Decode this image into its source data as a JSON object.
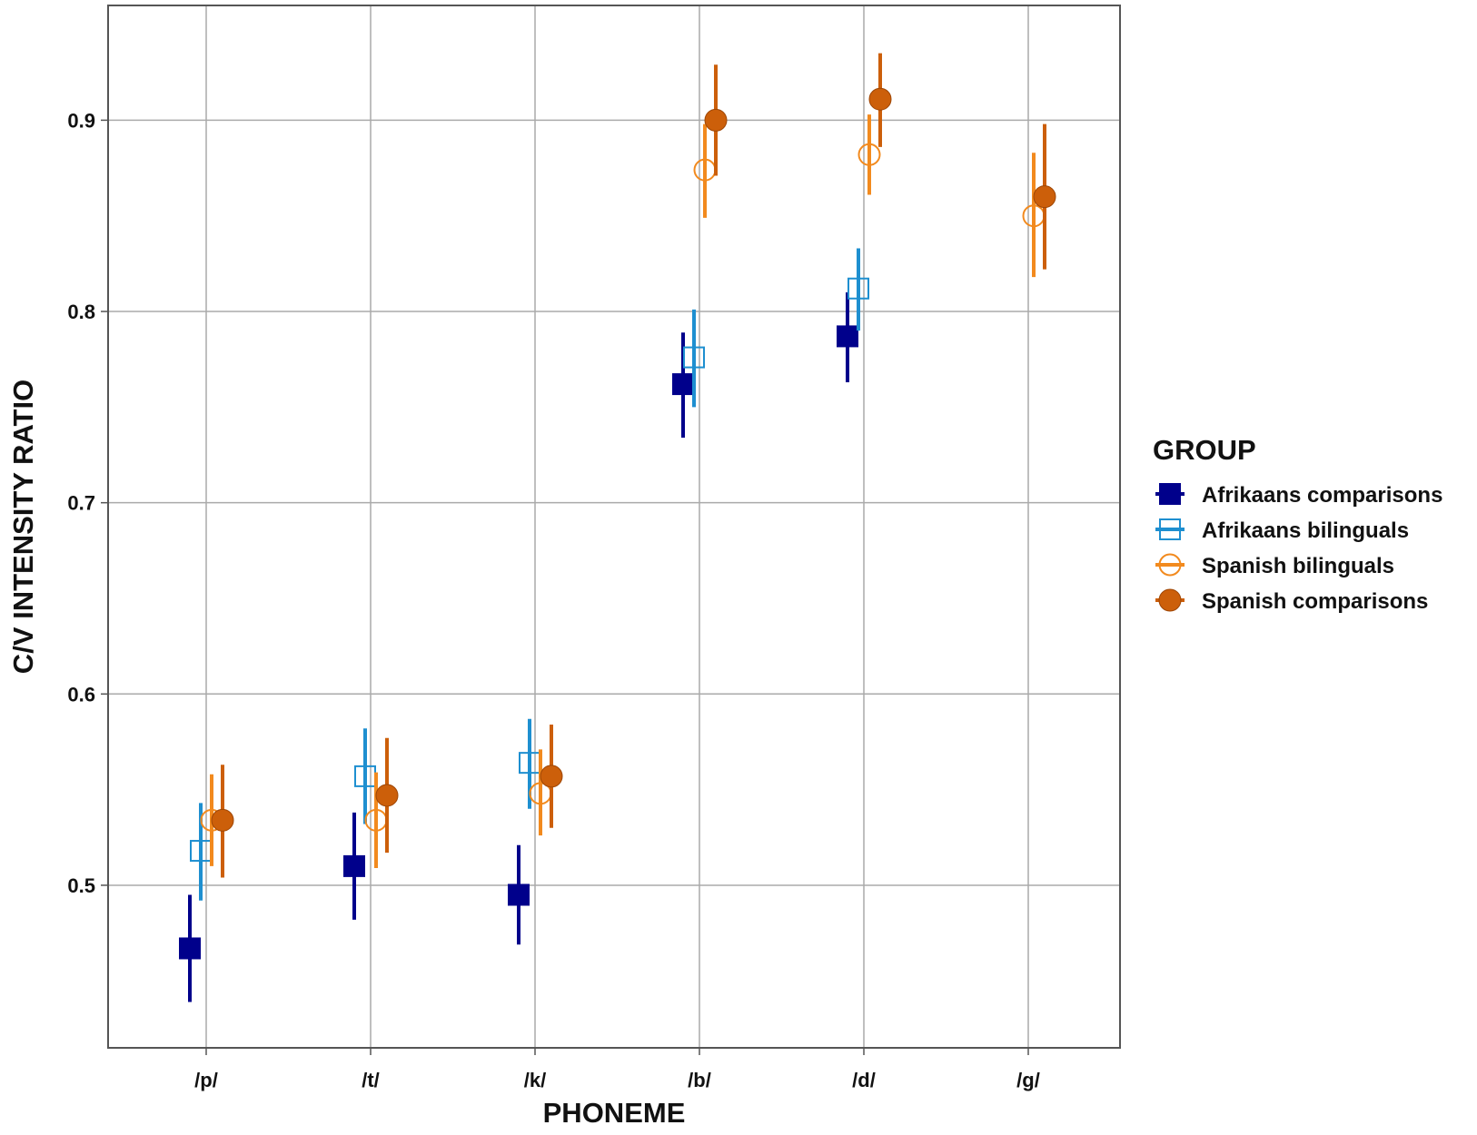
{
  "chart_data": {
    "type": "scatter",
    "xlabel": "PHONEME",
    "ylabel": "C/V INTENSITY RATIO",
    "categories": [
      "/p/",
      "/t/",
      "/k/",
      "/b/",
      "/d/",
      "/g/"
    ],
    "ylim": [
      0.415,
      0.96
    ],
    "yticks": [
      0.5,
      0.6,
      0.7,
      0.8,
      0.9
    ],
    "ytick_labels": [
      "0.5",
      "0.6",
      "0.7",
      "0.8",
      "0.9"
    ],
    "grid": true,
    "legend": {
      "title": "GROUP",
      "position": "right"
    },
    "series": [
      {
        "name": "Afrikaans comparisons",
        "color": "#00008B",
        "marker": "filled-square",
        "points": [
          {
            "category": "/p/",
            "y": 0.467,
            "low": 0.439,
            "high": 0.495
          },
          {
            "category": "/t/",
            "y": 0.51,
            "low": 0.482,
            "high": 0.538
          },
          {
            "category": "/k/",
            "y": 0.495,
            "low": 0.469,
            "high": 0.521
          },
          {
            "category": "/b/",
            "y": 0.762,
            "low": 0.734,
            "high": 0.789
          },
          {
            "category": "/d/",
            "y": 0.787,
            "low": 0.763,
            "high": 0.81
          }
        ]
      },
      {
        "name": "Afrikaans bilinguals",
        "color": "#1E8FD0",
        "marker": "open-square",
        "points": [
          {
            "category": "/p/",
            "y": 0.518,
            "low": 0.492,
            "high": 0.543
          },
          {
            "category": "/t/",
            "y": 0.557,
            "low": 0.532,
            "high": 0.582
          },
          {
            "category": "/k/",
            "y": 0.564,
            "low": 0.54,
            "high": 0.587
          },
          {
            "category": "/b/",
            "y": 0.776,
            "low": 0.75,
            "high": 0.801
          },
          {
            "category": "/d/",
            "y": 0.812,
            "low": 0.79,
            "high": 0.833
          }
        ]
      },
      {
        "name": "Spanish bilinguals",
        "color": "#F28A1E",
        "marker": "open-circle",
        "points": [
          {
            "category": "/p/",
            "y": 0.534,
            "low": 0.51,
            "high": 0.558
          },
          {
            "category": "/t/",
            "y": 0.534,
            "low": 0.509,
            "high": 0.559
          },
          {
            "category": "/k/",
            "y": 0.548,
            "low": 0.526,
            "high": 0.571
          },
          {
            "category": "/b/",
            "y": 0.874,
            "low": 0.849,
            "high": 0.898
          },
          {
            "category": "/d/",
            "y": 0.882,
            "low": 0.861,
            "high": 0.903
          },
          {
            "category": "/g/",
            "y": 0.85,
            "low": 0.818,
            "high": 0.883
          }
        ]
      },
      {
        "name": "Spanish comparisons",
        "color": "#CC5F0A",
        "marker": "filled-circle",
        "points": [
          {
            "category": "/p/",
            "y": 0.534,
            "low": 0.504,
            "high": 0.563
          },
          {
            "category": "/t/",
            "y": 0.547,
            "low": 0.517,
            "high": 0.577
          },
          {
            "category": "/k/",
            "y": 0.557,
            "low": 0.53,
            "high": 0.584
          },
          {
            "category": "/b/",
            "y": 0.9,
            "low": 0.871,
            "high": 0.929
          },
          {
            "category": "/d/",
            "y": 0.911,
            "low": 0.886,
            "high": 0.935
          },
          {
            "category": "/g/",
            "y": 0.86,
            "low": 0.822,
            "high": 0.898
          }
        ]
      }
    ]
  }
}
